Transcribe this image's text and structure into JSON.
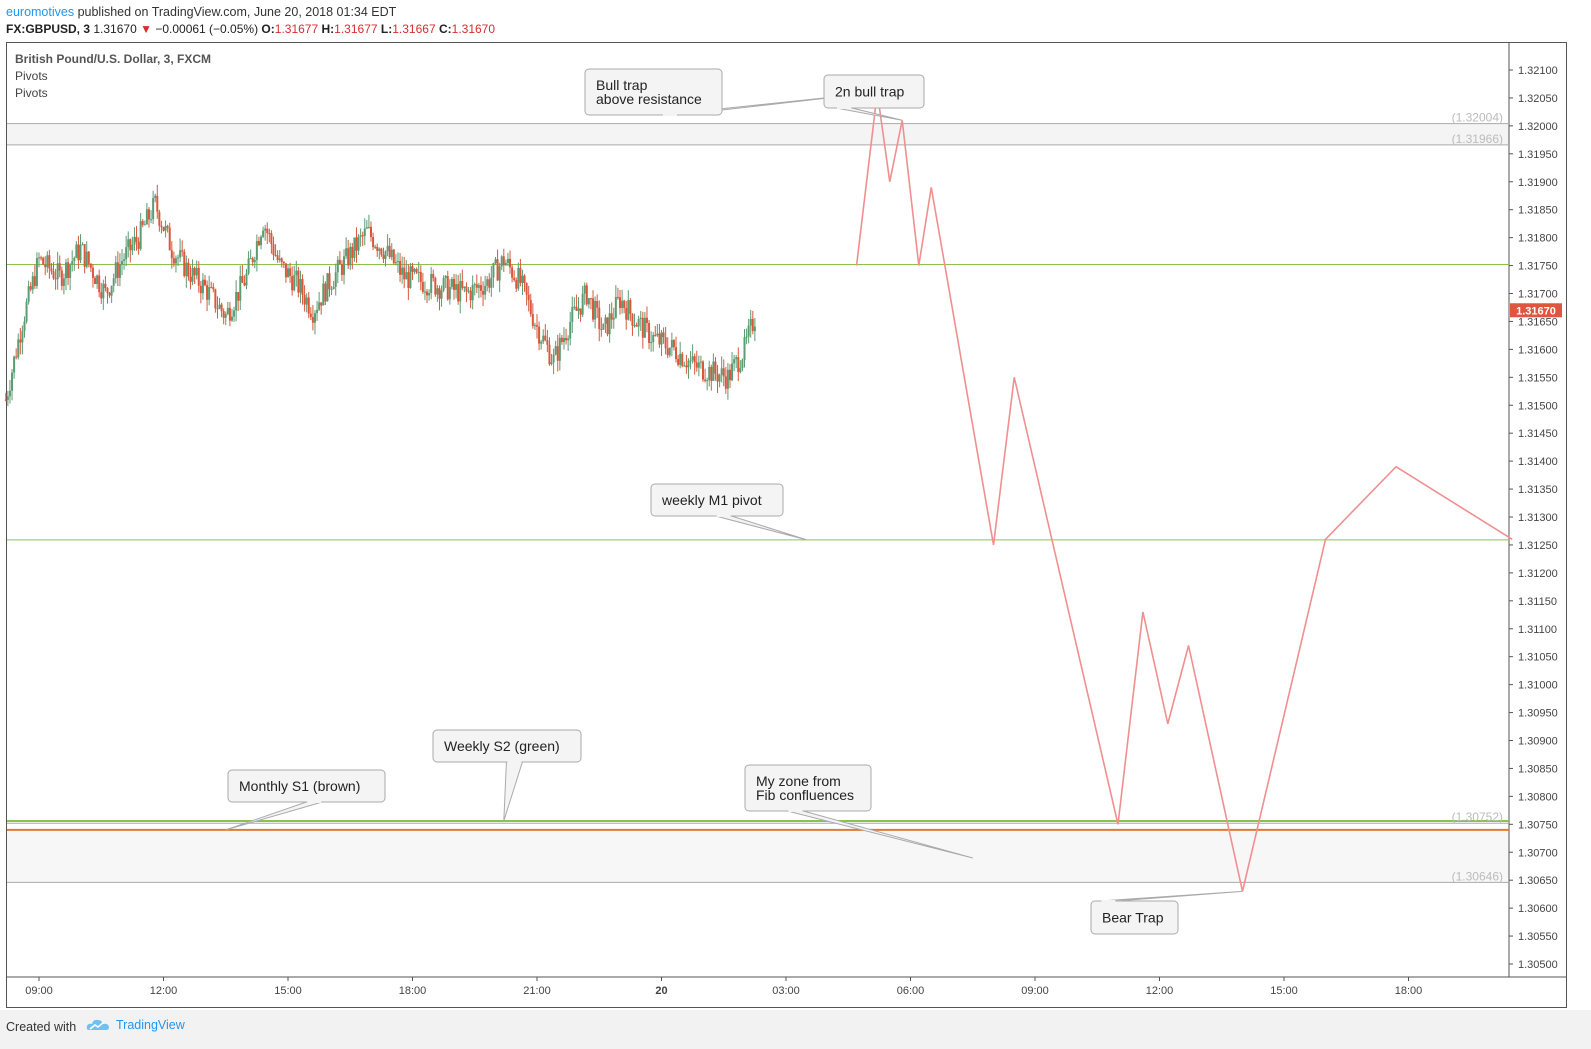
{
  "header": {
    "author": "euromotives",
    "published": " published on TradingView.com, June 20, 2018 01:34 EDT"
  },
  "ohlc": {
    "symbol": "FX:GBPUSD, 3",
    "last": "1.31670",
    "arrow": "▼",
    "change": "−0.00061 (−0.05%)",
    "o_label": "O:",
    "o": "1.31677",
    "h_label": "H:",
    "h": "1.31677",
    "l_label": "L:",
    "l": "1.31667",
    "c_label": "C:",
    "c": "1.31670"
  },
  "legend": {
    "title": "British Pound/U.S. Dollar, 3, FXCM",
    "ind1": "Pivots",
    "ind2": "Pivots"
  },
  "footer": {
    "created": "Created with",
    "brand": "TradingView"
  },
  "colors": {
    "candle_up": "#5b9c73",
    "candle_down": "#d9573b",
    "projection": "#f08f8f",
    "pivot_green": "#8bc34a",
    "s1_brown": "#e07b30",
    "price_tag": "#e05540"
  },
  "chart_data": {
    "type": "candlestick",
    "title": "British Pound/U.S. Dollar, 3, FXCM",
    "ylim": [
      1.3046,
      1.3213
    ],
    "y_ticks": [
      "1.32100",
      "1.32050",
      "1.32000",
      "1.31950",
      "1.31900",
      "1.31850",
      "1.31800",
      "1.31750",
      "1.31700",
      "1.31650",
      "1.31600",
      "1.31550",
      "1.31500",
      "1.31450",
      "1.31400",
      "1.31350",
      "1.31300",
      "1.31250",
      "1.31200",
      "1.31150",
      "1.31100",
      "1.31050",
      "1.31000",
      "1.30950",
      "1.30900",
      "1.30850",
      "1.30800",
      "1.30750",
      "1.30700",
      "1.30650",
      "1.30600",
      "1.30550",
      "1.30500"
    ],
    "x_ticks": [
      "09:00",
      "12:00",
      "15:00",
      "18:00",
      "21:00",
      "20",
      "03:00",
      "06:00",
      "09:00",
      "12:00",
      "15:00",
      "18:00"
    ],
    "last_price": "1.31670",
    "price_path_points": [
      [
        8.2,
        1.3151
      ],
      [
        8.6,
        1.3165
      ],
      [
        9.0,
        1.3176
      ],
      [
        9.5,
        1.3173
      ],
      [
        10.0,
        1.3178
      ],
      [
        10.6,
        1.317
      ],
      [
        11.0,
        1.3176
      ],
      [
        11.4,
        1.318
      ],
      [
        11.8,
        1.3186
      ],
      [
        12.2,
        1.3178
      ],
      [
        12.6,
        1.3174
      ],
      [
        13.0,
        1.3171
      ],
      [
        13.5,
        1.3166
      ],
      [
        14.0,
        1.3173
      ],
      [
        14.4,
        1.3183
      ],
      [
        14.8,
        1.3175
      ],
      [
        15.2,
        1.3172
      ],
      [
        15.6,
        1.3167
      ],
      [
        16.0,
        1.3172
      ],
      [
        16.5,
        1.3177
      ],
      [
        16.9,
        1.3181
      ],
      [
        17.3,
        1.3178
      ],
      [
        17.8,
        1.3173
      ],
      [
        18.3,
        1.3172
      ],
      [
        18.8,
        1.3171
      ],
      [
        19.3,
        1.317
      ],
      [
        19.8,
        1.3172
      ],
      [
        20.2,
        1.3176
      ],
      [
        20.6,
        1.3172
      ],
      [
        21.0,
        1.3164
      ],
      [
        21.4,
        1.3158
      ],
      [
        21.8,
        1.3165
      ],
      [
        22.2,
        1.317
      ],
      [
        22.6,
        1.3163
      ],
      [
        23.0,
        1.3169
      ],
      [
        23.4,
        1.3165
      ],
      [
        23.8,
        1.3162
      ],
      [
        24.3,
        1.316
      ],
      [
        24.8,
        1.3157
      ],
      [
        25.2,
        1.3156
      ],
      [
        25.6,
        1.3155
      ],
      [
        26.0,
        1.316
      ],
      [
        26.3,
        1.3167
      ]
    ],
    "projection_path": [
      [
        28.7,
        1.3175
      ],
      [
        29.2,
        1.3206
      ],
      [
        29.5,
        1.319
      ],
      [
        29.8,
        1.3201
      ],
      [
        30.2,
        1.3175
      ],
      [
        30.5,
        1.3189
      ],
      [
        32.0,
        1.3125
      ],
      [
        32.5,
        1.3155
      ],
      [
        35.0,
        1.3075
      ],
      [
        35.6,
        1.3113
      ],
      [
        36.2,
        1.3093
      ],
      [
        36.7,
        1.3107
      ],
      [
        38.0,
        1.3063
      ],
      [
        40.0,
        1.3126
      ],
      [
        41.7,
        1.3139
      ],
      [
        44.5,
        1.3126
      ]
    ],
    "horizontal_lines": [
      {
        "value": 1.32004,
        "label": "(1.32004)"
      },
      {
        "value": 1.31966,
        "label": "(1.31966)"
      },
      {
        "value": 1.31752
      },
      {
        "value": 1.31259
      },
      {
        "value": 1.30756
      },
      {
        "value": 1.30752,
        "label": "(1.30752)"
      },
      {
        "value": 1.3074
      },
      {
        "value": 1.30646,
        "label": "(1.30646)"
      }
    ],
    "annotations": [
      {
        "text_lines": [
          "Bull trap",
          "above resistance"
        ],
        "anchor": [
          29.2,
          1.3206
        ]
      },
      {
        "text_lines": [
          "2n bull trap"
        ],
        "anchor": [
          29.8,
          1.3201
        ]
      },
      {
        "text_lines": [
          "weekly M1 pivot"
        ],
        "anchor": [
          27.5,
          1.31259
        ]
      },
      {
        "text_lines": [
          "Weekly S2 (green)"
        ],
        "anchor": [
          20.2,
          1.30756
        ]
      },
      {
        "text_lines": [
          "Monthly S1 (brown)"
        ],
        "anchor": [
          13.5,
          1.3074
        ]
      },
      {
        "text_lines": [
          "My zone from",
          "Fib confluences"
        ],
        "anchor": [
          31.5,
          1.307
        ]
      },
      {
        "text_lines": [
          "Bear Trap"
        ],
        "anchor": [
          38.0,
          1.3063
        ]
      }
    ]
  }
}
